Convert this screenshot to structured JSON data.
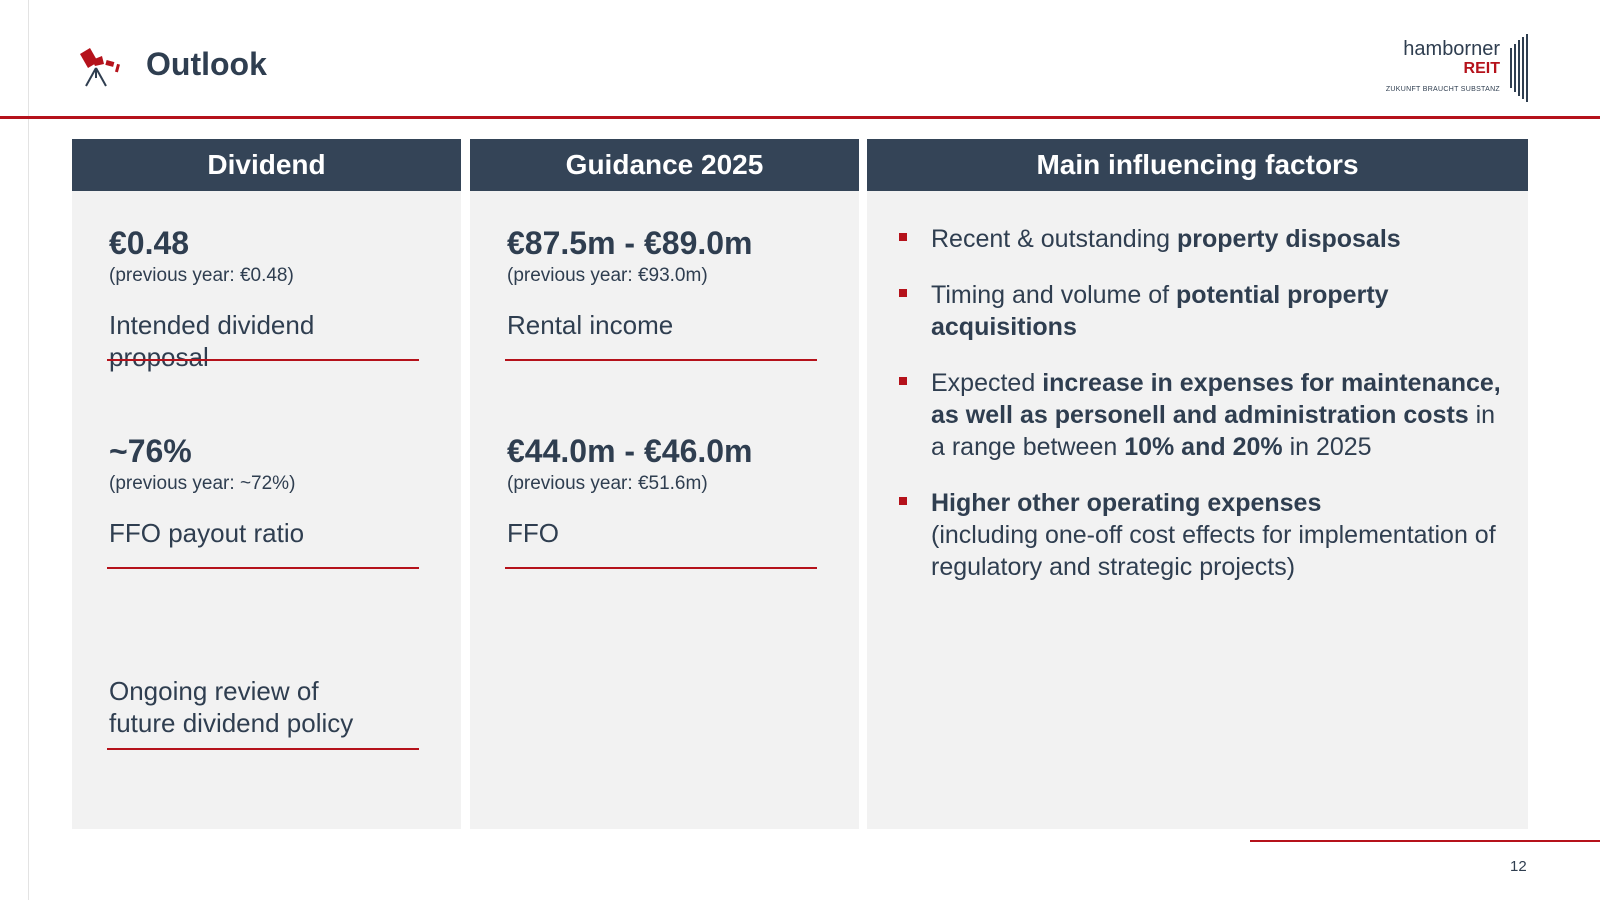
{
  "header": {
    "title": "Outlook",
    "icon": "telescope-icon",
    "logo": {
      "name": "hamborner",
      "reit": "REIT",
      "tagline": "ZUKUNFT BRAUCHT SUBSTANZ"
    }
  },
  "colors": {
    "accent": "#b5121b",
    "header_bg": "#344457",
    "panel_bg": "#f2f2f2",
    "text": "#2f3e50"
  },
  "columns": {
    "dividend": {
      "title": "Dividend",
      "items": [
        {
          "value": "€0.48",
          "previous": "(previous year: €0.48)",
          "label": "Intended dividend proposal"
        },
        {
          "value": "~76%",
          "previous": "(previous year: ~72%)",
          "label": "FFO payout ratio"
        }
      ],
      "note_line1": "Ongoing review of",
      "note_line2": "future dividend policy"
    },
    "guidance": {
      "title": "Guidance 2025",
      "items": [
        {
          "value": "€87.5m - €89.0m",
          "previous": "(previous year: €93.0m)",
          "label": "Rental income"
        },
        {
          "value": "€44.0m - €46.0m",
          "previous": "(previous year: €51.6m)",
          "label": "FFO"
        }
      ]
    },
    "factors": {
      "title": "Main influencing factors",
      "f1": {
        "pre": "Recent & outstanding ",
        "bold": "property disposals"
      },
      "f2": {
        "pre": "Timing and volume of ",
        "bold": "potential property acquisitions"
      },
      "f3": {
        "pre": "Expected ",
        "bold1": "increase in expenses for maintenance, as well as personell and administration costs",
        "mid": " in a range between ",
        "bold2": "10% and 20%",
        "post": " in 2025"
      },
      "f4": {
        "bold": "Higher other operating expenses",
        "rest": "(including one-off cost effects for implementation of regulatory and strategic projects)"
      }
    }
  },
  "footer": {
    "page_number": "12"
  }
}
